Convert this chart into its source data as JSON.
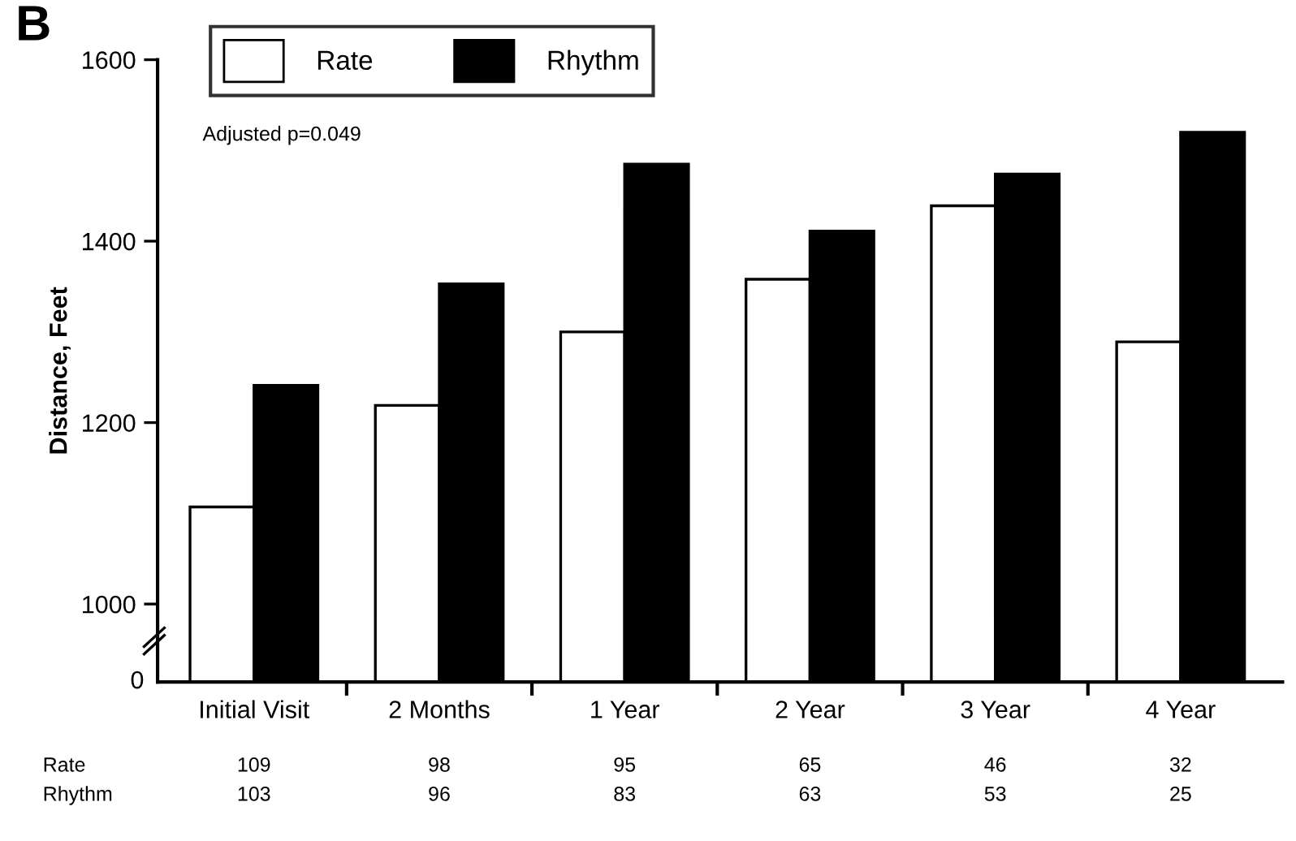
{
  "chart_data": {
    "type": "bar",
    "title": "B",
    "ylabel": "Distance, Feet",
    "categories": [
      "Initial Visit",
      "2 Months",
      "1 Year",
      "2 Year",
      "3 Year",
      "4 Year"
    ],
    "series": [
      {
        "name": "Rate",
        "color": "#ffffff",
        "values": [
          1107,
          1219,
          1300,
          1358,
          1439,
          1289
        ]
      },
      {
        "name": "Rhythm",
        "color": "#000000",
        "values": [
          1241,
          1353,
          1485,
          1411,
          1474,
          1520
        ]
      }
    ],
    "ylim": [
      914,
      1600
    ],
    "yticks": [
      1000,
      1200,
      1400,
      1600
    ],
    "grid": false,
    "legend": "top",
    "annotations": [
      "Adjusted p=0.049",
      "0",
      "Rate",
      "109",
      "98",
      "95",
      "65",
      "46",
      "32",
      "Rhythm",
      "103",
      "96",
      "83",
      "63",
      "53",
      "25"
    ]
  }
}
